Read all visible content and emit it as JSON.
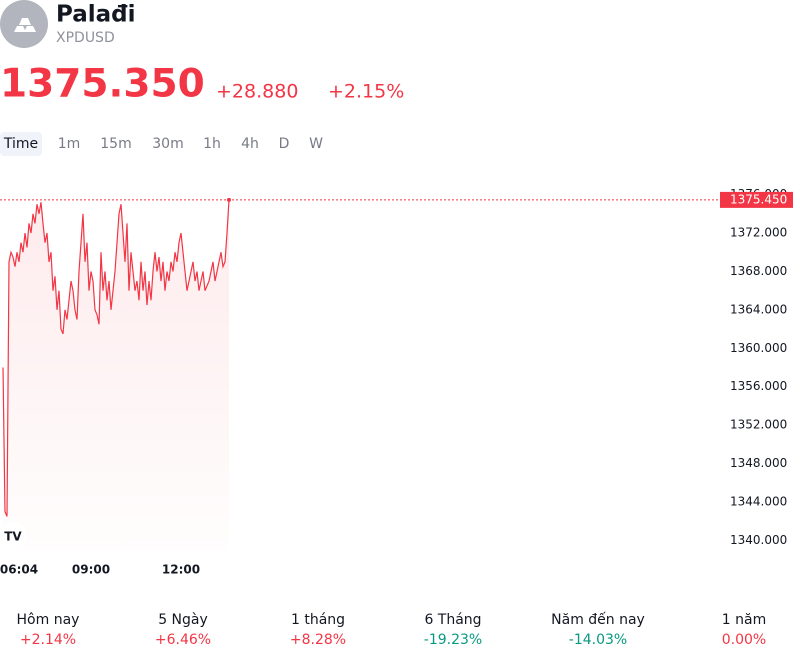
{
  "header": {
    "name": "Palađi",
    "symbol": "XPDUSD",
    "price": "1375.350",
    "change": "+28.880",
    "change_percent": "+2.15%"
  },
  "timeframes": [
    "Time",
    "1m",
    "15m",
    "30m",
    "1h",
    "4h",
    "D",
    "W"
  ],
  "chart_data": {
    "type": "line",
    "categories": [
      "06:04",
      null,
      null,
      null,
      null,
      null,
      null,
      null,
      null,
      null,
      null,
      null,
      null,
      null,
      null,
      null,
      null,
      null,
      null,
      null,
      null,
      null,
      null,
      null,
      null,
      null,
      null,
      null,
      null,
      null,
      null,
      null,
      null,
      null,
      null,
      null,
      null,
      null,
      null,
      null,
      null,
      null,
      null,
      null,
      "09:00",
      null,
      null,
      null,
      null,
      null,
      null,
      null,
      null,
      null,
      null,
      null,
      null,
      null,
      null,
      null,
      null,
      null,
      null,
      null,
      null,
      null,
      null,
      null,
      null,
      null,
      null,
      null,
      null,
      null,
      null,
      null,
      null,
      null,
      null,
      null,
      null,
      null,
      null,
      null,
      null,
      null,
      null,
      null,
      null,
      "12:00",
      null,
      null,
      null,
      null,
      null,
      null,
      null,
      null,
      null,
      null,
      null,
      null,
      null,
      null,
      null,
      null,
      null,
      null,
      null,
      null,
      null,
      null,
      null,
      null
    ],
    "series": [
      {
        "color": "#f23645",
        "values": [
          1358,
          1343,
          1342.5,
          1369,
          1370,
          1369.5,
          1368.5,
          1370,
          1369,
          1371,
          1370,
          1372,
          1370.5,
          1373,
          1372,
          1374,
          1373,
          1375,
          1374,
          1375.2,
          1373,
          1371,
          1372,
          1369,
          1370,
          1366,
          1367.5,
          1364,
          1366,
          1362,
          1361.5,
          1364,
          1363,
          1365,
          1367,
          1366,
          1364,
          1363,
          1368,
          1371,
          1374,
          1369,
          1371,
          1366,
          1368,
          1367,
          1364,
          1363.5,
          1362.5,
          1370,
          1366,
          1368,
          1365,
          1367,
          1364,
          1366,
          1368,
          1371,
          1374,
          1375,
          1372,
          1369,
          1373,
          1366,
          1370,
          1368,
          1366,
          1367,
          1365,
          1369,
          1366,
          1368,
          1364.5,
          1367,
          1365,
          1368,
          1370,
          1368,
          1369.5,
          1367,
          1369,
          1366,
          1368,
          1367,
          1369,
          1368,
          1370,
          1369,
          1371,
          1372,
          1370,
          1368,
          1366,
          1367,
          1368,
          1369,
          1367,
          1368,
          1366,
          1367,
          1368,
          1366,
          1366.5,
          1367,
          1368,
          1369,
          1367,
          1368,
          1369,
          1370,
          1368.5,
          1369,
          1372,
          1375.45
        ]
      }
    ],
    "last_label": "1375.450",
    "ylim": [
      1339,
      1377
    ],
    "yticks": [
      {
        "value": 1340,
        "label": "1340.000"
      },
      {
        "value": 1344,
        "label": "1344.000"
      },
      {
        "value": 1348,
        "label": "1348.000"
      },
      {
        "value": 1352,
        "label": "1352.000"
      },
      {
        "value": 1356,
        "label": "1356.000"
      },
      {
        "value": 1360,
        "label": "1360.000"
      },
      {
        "value": 1364,
        "label": "1364.000"
      },
      {
        "value": 1368,
        "label": "1368.000"
      },
      {
        "value": 1372,
        "label": "1372.000"
      },
      {
        "value": 1376,
        "label": "1376.000"
      }
    ]
  },
  "performance": [
    {
      "label": "Hôm nay",
      "value": "+2.14%",
      "color": "#f23645"
    },
    {
      "label": "5 Ngày",
      "value": "+6.46%",
      "color": "#f23645"
    },
    {
      "label": "1 tháng",
      "value": "+8.28%",
      "color": "#f23645"
    },
    {
      "label": "6 Tháng",
      "value": "-19.23%",
      "color": "#089981"
    },
    {
      "label": "Năm đến nay",
      "value": "-14.03%",
      "color": "#089981"
    },
    {
      "label": "1 năm",
      "value": "0.00%",
      "color": "#f23645"
    }
  ]
}
